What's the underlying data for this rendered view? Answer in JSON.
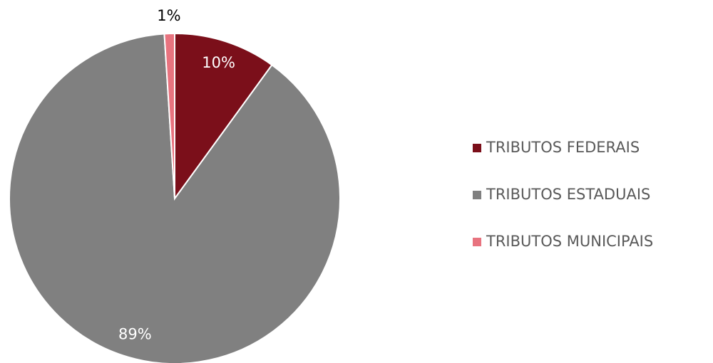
{
  "chart_data": {
    "type": "pie",
    "categories": [
      "TRIBUTOS FEDERAIS",
      "TRIBUTOS ESTADUAIS",
      "TRIBUTOS MUNICIPAIS"
    ],
    "values": [
      10,
      89,
      1
    ],
    "value_labels": [
      "10%",
      "89%",
      "1%"
    ],
    "colors": [
      "#7b0f1a",
      "#808080",
      "#e8737f"
    ],
    "legend": "right"
  }
}
